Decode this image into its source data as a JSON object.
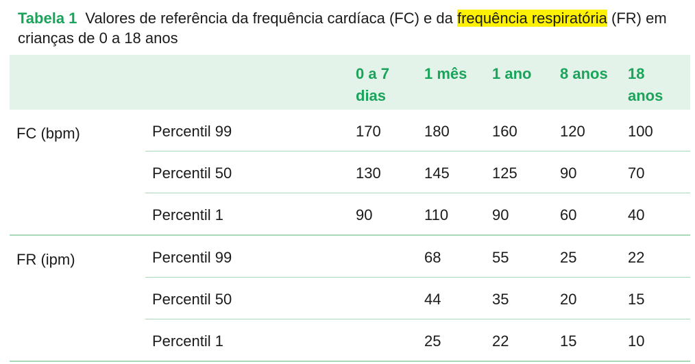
{
  "caption": {
    "label": "Tabela 1",
    "text_before": "Valores de referência da frequência cardíaca (FC) e da ",
    "highlight": "frequência respiratória",
    "text_after": " (FR) em crianças de 0 a 18 anos"
  },
  "columns": [
    {
      "line1": "0 a 7",
      "line2": "dias"
    },
    {
      "line1": "1 mês",
      "line2": ""
    },
    {
      "line1": "1 ano",
      "line2": ""
    },
    {
      "line1": "8 anos",
      "line2": ""
    },
    {
      "line1": "18",
      "line2": "anos"
    }
  ],
  "groups": [
    {
      "name": "FC (bpm)",
      "rows": [
        {
          "label": "Percentil 99",
          "values": [
            "170",
            "180",
            "160",
            "120",
            "100"
          ]
        },
        {
          "label": "Percentil 50",
          "values": [
            "130",
            "145",
            "125",
            "90",
            "70"
          ]
        },
        {
          "label": "Percentil 1",
          "values": [
            "90",
            "110",
            "90",
            "60",
            "40"
          ]
        }
      ]
    },
    {
      "name": "FR (ipm)",
      "rows": [
        {
          "label": "Percentil 99",
          "values": [
            "",
            "68",
            "55",
            "25",
            "22"
          ]
        },
        {
          "label": "Percentil 50",
          "values": [
            "",
            "44",
            "35",
            "20",
            "15"
          ]
        },
        {
          "label": "Percentil 1",
          "values": [
            "",
            "25",
            "22",
            "15",
            "10"
          ]
        }
      ]
    }
  ],
  "colors": {
    "accent": "#1aa35a",
    "header_bg": "#e4f3e9",
    "rule": "#a9d8b8",
    "highlight": "#fff200"
  }
}
